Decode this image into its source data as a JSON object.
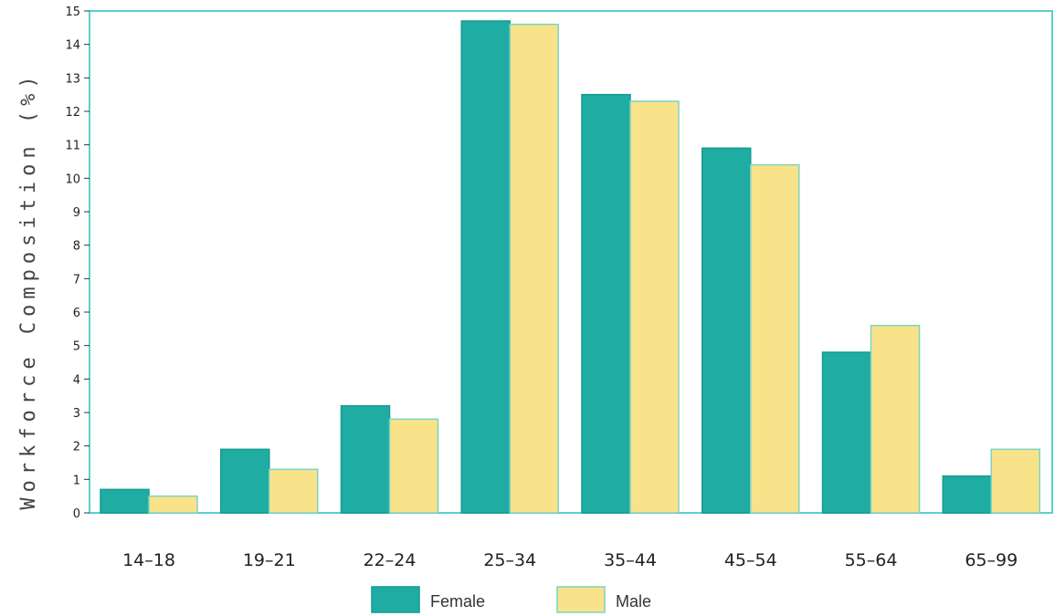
{
  "chart_data": {
    "type": "bar",
    "title": "",
    "xlabel": "",
    "ylabel": "Workforce Composition (%)",
    "categories": [
      "14–18",
      "19–21",
      "22–24",
      "25–34",
      "35–44",
      "45–54",
      "55–64",
      "65–99"
    ],
    "series": [
      {
        "name": "Female",
        "color": "#1fada3",
        "values": [
          0.7,
          1.9,
          3.2,
          14.7,
          12.5,
          10.9,
          4.8,
          1.1
        ]
      },
      {
        "name": "Male",
        "color": "#f8e38b",
        "values": [
          0.5,
          1.3,
          2.8,
          14.6,
          12.3,
          10.4,
          5.6,
          1.9
        ]
      }
    ],
    "ylim": [
      0,
      15
    ],
    "yticks": [
      "0",
      "1",
      "2",
      "3",
      "4",
      "5",
      "6",
      "7",
      "8",
      "9",
      "10",
      "11",
      "12",
      "13",
      "14",
      "15"
    ],
    "grid": false,
    "legend": "bottom",
    "frame_color": "#5ccfcf"
  }
}
